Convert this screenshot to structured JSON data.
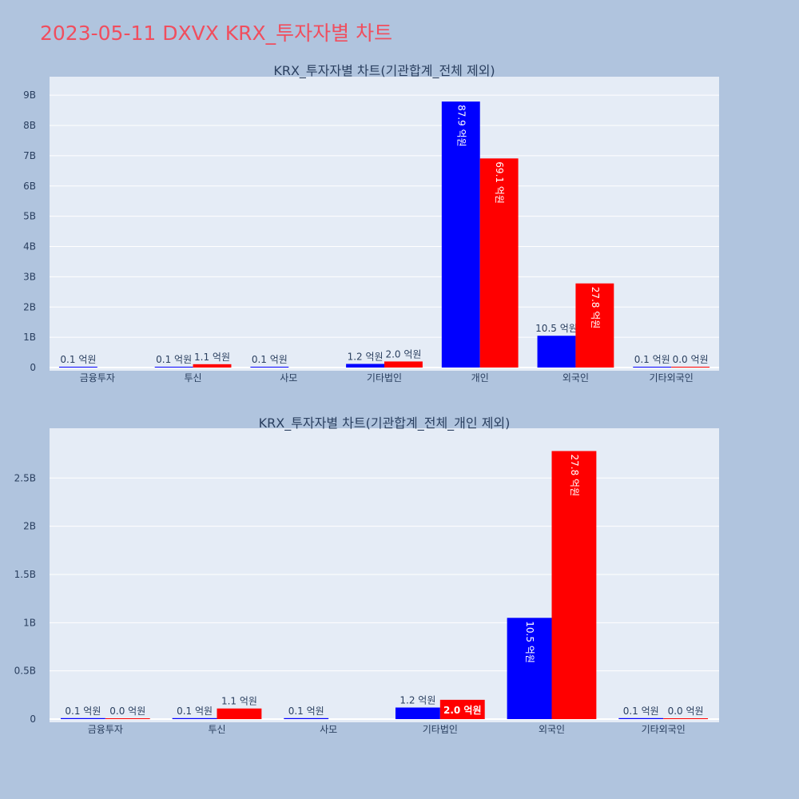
{
  "page": {
    "title": "2023-05-11 DXVX KRX_투자자별 차트"
  },
  "colors": {
    "background": "#b0c4de",
    "plot_bg": "#e5ecf6",
    "title": "#f04e5e",
    "series_buy": "#0000ff",
    "series_sell": "#ff0000",
    "text": "#2a3f5f"
  },
  "chart_data": [
    {
      "type": "bar",
      "title": "KRX_투자자별 차트(기관합계_전체 제외)",
      "categories": [
        "금융투자",
        "투신",
        "사모",
        "기타법인",
        "개인",
        "외국인",
        "기타외국인"
      ],
      "ylim": [
        0,
        9.4
      ],
      "yticks": [
        {
          "v": 0,
          "label": "0"
        },
        {
          "v": 1,
          "label": "1B"
        },
        {
          "v": 2,
          "label": "2B"
        },
        {
          "v": 3,
          "label": "3B"
        },
        {
          "v": 4,
          "label": "4B"
        },
        {
          "v": 5,
          "label": "5B"
        },
        {
          "v": 6,
          "label": "6B"
        },
        {
          "v": 7,
          "label": "7B"
        },
        {
          "v": 8,
          "label": "8B"
        },
        {
          "v": 9,
          "label": "9B"
        }
      ],
      "series": [
        {
          "values": [
            0.01,
            0.01,
            0.01,
            0.12,
            8.79,
            1.05,
            0.01
          ],
          "labels": [
            "0.1 억원",
            "0.1 억원",
            "0.1 억원",
            "1.2 억원",
            "87.9 억원",
            "10.5 억원",
            "0.1 억원"
          ]
        },
        {
          "values": [
            null,
            0.11,
            null,
            0.2,
            6.91,
            2.78,
            0.0
          ],
          "labels": [
            "",
            "1.1 억원",
            "",
            "2.0 억원",
            "69.1 억원",
            "27.8 억원",
            "0.0 억원"
          ]
        }
      ]
    },
    {
      "type": "bar",
      "title": "KRX_투자자별 차트(기관합계_전체_개인 제외)",
      "categories": [
        "금융투자",
        "투신",
        "사모",
        "기타법인",
        "외국인",
        "기타외국인"
      ],
      "ylim": [
        0,
        2.95
      ],
      "yticks": [
        {
          "v": 0,
          "label": "0"
        },
        {
          "v": 0.5,
          "label": "0.5B"
        },
        {
          "v": 1,
          "label": "1B"
        },
        {
          "v": 1.5,
          "label": "1.5B"
        },
        {
          "v": 2,
          "label": "2B"
        },
        {
          "v": 2.5,
          "label": "2.5B"
        }
      ],
      "series": [
        {
          "values": [
            0.01,
            0.01,
            0.01,
            0.12,
            1.05,
            0.01
          ],
          "labels": [
            "0.1 억원",
            "0.1 억원",
            "0.1 억원",
            "1.2 억원",
            "10.5 억원",
            "0.1 억원"
          ]
        },
        {
          "values": [
            0.0,
            0.11,
            null,
            0.2,
            2.78,
            0.0
          ],
          "labels": [
            "0.0 억원",
            "1.1 억원",
            "",
            "2.0 억원",
            "27.8 억원",
            "0.0 억원"
          ]
        }
      ]
    }
  ]
}
